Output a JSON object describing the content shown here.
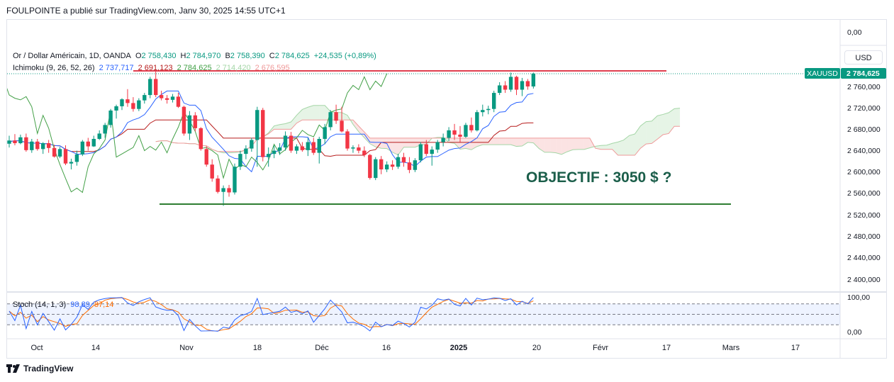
{
  "header": {
    "published_by": "FOULPOINTE a publié sur TradingView.com, Janv 30, 2025 14:55 UTC+1"
  },
  "symbol_line": {
    "name": "Or / Dollar Américain, 1D, OANDA",
    "open_label": "O",
    "open": "2 758,430",
    "high_label": "H",
    "high": "2 784,970",
    "low_label": "B",
    "low": "2 758,390",
    "close_label": "C",
    "close": "2 784,625",
    "change": "+24,535 (+0,89%)"
  },
  "ichimoku_line": {
    "name": "Ichimoku (9, 26, 52, 26)",
    "tenkan": "2 737,717",
    "kijun": "2 691,123",
    "chikou": "2 784,625",
    "span_a": "2 714,420",
    "span_b": "2 676,595"
  },
  "stoch_line": {
    "name": "Stoch (14, 1, 3)",
    "k": "98,89",
    "d": "87,14"
  },
  "currency_button": "USD",
  "ticker_tag": "XAUUSD",
  "price_tag": "2 784,625",
  "annotation": "OBJECTIF : 3050 $ ?",
  "footer_brand": "TradingView",
  "colors": {
    "up": "#089981",
    "down": "#f23645",
    "tenkan": "#2962ff",
    "kijun": "#b71c1c",
    "chikou": "#43a047",
    "cloud_bull": "#a5d6a7",
    "cloud_bear": "#ef9a9a",
    "resistance": "#e04050",
    "support": "#2e7d32",
    "annotation": "#1b5e4a",
    "stoch_k": "#2962ff",
    "stoch_d": "#ff6d00"
  },
  "chart_data": {
    "type": "candlestick",
    "price_axis_ticks": [
      "0,00",
      "2 760,000",
      "2 720,000",
      "2 680,000",
      "2 640,000",
      "2 600,000",
      "2 560,000",
      "2 520,000",
      "2 480,000",
      "2 440,000",
      "2 400,000"
    ],
    "stoch_axis_ticks": [
      "100,00",
      "0,00"
    ],
    "time_axis_ticks": [
      "Oct",
      "14",
      "Nov",
      "18",
      "Déc",
      "16",
      "2025",
      "20",
      "Févr",
      "17",
      "Mars",
      "17"
    ],
    "candles": [
      {
        "o": 2653,
        "h": 2668,
        "l": 2646,
        "c": 2659
      },
      {
        "o": 2659,
        "h": 2671,
        "l": 2650,
        "c": 2654
      },
      {
        "o": 2654,
        "h": 2670,
        "l": 2652,
        "c": 2665
      },
      {
        "o": 2665,
        "h": 2672,
        "l": 2638,
        "c": 2641
      },
      {
        "o": 2641,
        "h": 2662,
        "l": 2636,
        "c": 2657
      },
      {
        "o": 2657,
        "h": 2662,
        "l": 2640,
        "c": 2643
      },
      {
        "o": 2643,
        "h": 2656,
        "l": 2634,
        "c": 2654
      },
      {
        "o": 2654,
        "h": 2660,
        "l": 2636,
        "c": 2645
      },
      {
        "o": 2645,
        "h": 2651,
        "l": 2627,
        "c": 2629
      },
      {
        "o": 2629,
        "h": 2647,
        "l": 2626,
        "c": 2643
      },
      {
        "o": 2643,
        "h": 2650,
        "l": 2613,
        "c": 2616
      },
      {
        "o": 2616,
        "h": 2625,
        "l": 2605,
        "c": 2619
      },
      {
        "o": 2619,
        "h": 2640,
        "l": 2612,
        "c": 2633
      },
      {
        "o": 2633,
        "h": 2660,
        "l": 2630,
        "c": 2657
      },
      {
        "o": 2657,
        "h": 2664,
        "l": 2640,
        "c": 2648
      },
      {
        "o": 2648,
        "h": 2668,
        "l": 2647,
        "c": 2662
      },
      {
        "o": 2662,
        "h": 2678,
        "l": 2660,
        "c": 2672
      },
      {
        "o": 2672,
        "h": 2692,
        "l": 2664,
        "c": 2688
      },
      {
        "o": 2688,
        "h": 2718,
        "l": 2683,
        "c": 2715
      },
      {
        "o": 2715,
        "h": 2726,
        "l": 2700,
        "c": 2723
      },
      {
        "o": 2723,
        "h": 2738,
        "l": 2716,
        "c": 2736
      },
      {
        "o": 2736,
        "h": 2755,
        "l": 2722,
        "c": 2729
      },
      {
        "o": 2729,
        "h": 2740,
        "l": 2713,
        "c": 2718
      },
      {
        "o": 2718,
        "h": 2738,
        "l": 2714,
        "c": 2734
      },
      {
        "o": 2734,
        "h": 2748,
        "l": 2728,
        "c": 2744
      },
      {
        "o": 2744,
        "h": 2778,
        "l": 2738,
        "c": 2774
      },
      {
        "o": 2774,
        "h": 2790,
        "l": 2740,
        "c": 2744
      },
      {
        "o": 2744,
        "h": 2752,
        "l": 2734,
        "c": 2738
      },
      {
        "o": 2738,
        "h": 2744,
        "l": 2728,
        "c": 2735
      },
      {
        "o": 2735,
        "h": 2746,
        "l": 2730,
        "c": 2741
      },
      {
        "o": 2741,
        "h": 2748,
        "l": 2720,
        "c": 2722
      },
      {
        "o": 2722,
        "h": 2724,
        "l": 2668,
        "c": 2672
      },
      {
        "o": 2672,
        "h": 2714,
        "l": 2660,
        "c": 2706
      },
      {
        "o": 2706,
        "h": 2712,
        "l": 2676,
        "c": 2682
      },
      {
        "o": 2682,
        "h": 2684,
        "l": 2640,
        "c": 2643
      },
      {
        "o": 2643,
        "h": 2648,
        "l": 2610,
        "c": 2614
      },
      {
        "o": 2614,
        "h": 2624,
        "l": 2582,
        "c": 2588
      },
      {
        "o": 2588,
        "h": 2594,
        "l": 2560,
        "c": 2563
      },
      {
        "o": 2563,
        "h": 2575,
        "l": 2537,
        "c": 2570
      },
      {
        "o": 2570,
        "h": 2576,
        "l": 2554,
        "c": 2562
      },
      {
        "o": 2562,
        "h": 2616,
        "l": 2558,
        "c": 2610
      },
      {
        "o": 2610,
        "h": 2640,
        "l": 2604,
        "c": 2634
      },
      {
        "o": 2634,
        "h": 2650,
        "l": 2624,
        "c": 2644
      },
      {
        "o": 2644,
        "h": 2664,
        "l": 2638,
        "c": 2660
      },
      {
        "o": 2660,
        "h": 2722,
        "l": 2610,
        "c": 2716
      },
      {
        "o": 2716,
        "h": 2720,
        "l": 2620,
        "c": 2628
      },
      {
        "o": 2628,
        "h": 2646,
        "l": 2610,
        "c": 2634
      },
      {
        "o": 2634,
        "h": 2650,
        "l": 2626,
        "c": 2640
      },
      {
        "o": 2640,
        "h": 2654,
        "l": 2632,
        "c": 2646
      },
      {
        "o": 2646,
        "h": 2676,
        "l": 2640,
        "c": 2668
      },
      {
        "o": 2668,
        "h": 2675,
        "l": 2636,
        "c": 2640
      },
      {
        "o": 2640,
        "h": 2652,
        "l": 2634,
        "c": 2648
      },
      {
        "o": 2648,
        "h": 2656,
        "l": 2638,
        "c": 2641
      },
      {
        "o": 2641,
        "h": 2664,
        "l": 2630,
        "c": 2656
      },
      {
        "o": 2656,
        "h": 2664,
        "l": 2632,
        "c": 2636
      },
      {
        "o": 2636,
        "h": 2666,
        "l": 2616,
        "c": 2662
      },
      {
        "o": 2662,
        "h": 2690,
        "l": 2652,
        "c": 2684
      },
      {
        "o": 2684,
        "h": 2716,
        "l": 2678,
        "c": 2712
      },
      {
        "o": 2712,
        "h": 2726,
        "l": 2690,
        "c": 2696
      },
      {
        "o": 2696,
        "h": 2722,
        "l": 2674,
        "c": 2676
      },
      {
        "o": 2676,
        "h": 2680,
        "l": 2640,
        "c": 2644
      },
      {
        "o": 2644,
        "h": 2650,
        "l": 2636,
        "c": 2646
      },
      {
        "o": 2646,
        "h": 2652,
        "l": 2635,
        "c": 2640
      },
      {
        "o": 2640,
        "h": 2648,
        "l": 2628,
        "c": 2632
      },
      {
        "o": 2632,
        "h": 2634,
        "l": 2586,
        "c": 2589
      },
      {
        "o": 2589,
        "h": 2628,
        "l": 2585,
        "c": 2624
      },
      {
        "o": 2624,
        "h": 2630,
        "l": 2596,
        "c": 2605
      },
      {
        "o": 2605,
        "h": 2620,
        "l": 2600,
        "c": 2614
      },
      {
        "o": 2614,
        "h": 2622,
        "l": 2604,
        "c": 2610
      },
      {
        "o": 2610,
        "h": 2634,
        "l": 2606,
        "c": 2628
      },
      {
        "o": 2628,
        "h": 2636,
        "l": 2610,
        "c": 2618
      },
      {
        "o": 2618,
        "h": 2628,
        "l": 2598,
        "c": 2604
      },
      {
        "o": 2604,
        "h": 2626,
        "l": 2600,
        "c": 2622
      },
      {
        "o": 2622,
        "h": 2656,
        "l": 2618,
        "c": 2652
      },
      {
        "o": 2652,
        "h": 2660,
        "l": 2630,
        "c": 2634
      },
      {
        "o": 2634,
        "h": 2648,
        "l": 2612,
        "c": 2642
      },
      {
        "o": 2642,
        "h": 2660,
        "l": 2636,
        "c": 2656
      },
      {
        "o": 2656,
        "h": 2672,
        "l": 2648,
        "c": 2664
      },
      {
        "o": 2664,
        "h": 2684,
        "l": 2658,
        "c": 2678
      },
      {
        "o": 2678,
        "h": 2690,
        "l": 2660,
        "c": 2670
      },
      {
        "o": 2670,
        "h": 2686,
        "l": 2656,
        "c": 2666
      },
      {
        "o": 2666,
        "h": 2692,
        "l": 2664,
        "c": 2688
      },
      {
        "o": 2688,
        "h": 2702,
        "l": 2674,
        "c": 2678
      },
      {
        "o": 2678,
        "h": 2716,
        "l": 2676,
        "c": 2712
      },
      {
        "o": 2712,
        "h": 2726,
        "l": 2704,
        "c": 2716
      },
      {
        "o": 2716,
        "h": 2724,
        "l": 2708,
        "c": 2718
      },
      {
        "o": 2718,
        "h": 2752,
        "l": 2712,
        "c": 2748
      },
      {
        "o": 2748,
        "h": 2768,
        "l": 2744,
        "c": 2762
      },
      {
        "o": 2762,
        "h": 2770,
        "l": 2748,
        "c": 2754
      },
      {
        "o": 2754,
        "h": 2786,
        "l": 2750,
        "c": 2778
      },
      {
        "o": 2778,
        "h": 2780,
        "l": 2744,
        "c": 2754
      },
      {
        "o": 2754,
        "h": 2776,
        "l": 2742,
        "c": 2770
      },
      {
        "o": 2770,
        "h": 2774,
        "l": 2754,
        "c": 2760
      },
      {
        "o": 2760,
        "h": 2786,
        "l": 2756,
        "c": 2784
      }
    ]
  }
}
